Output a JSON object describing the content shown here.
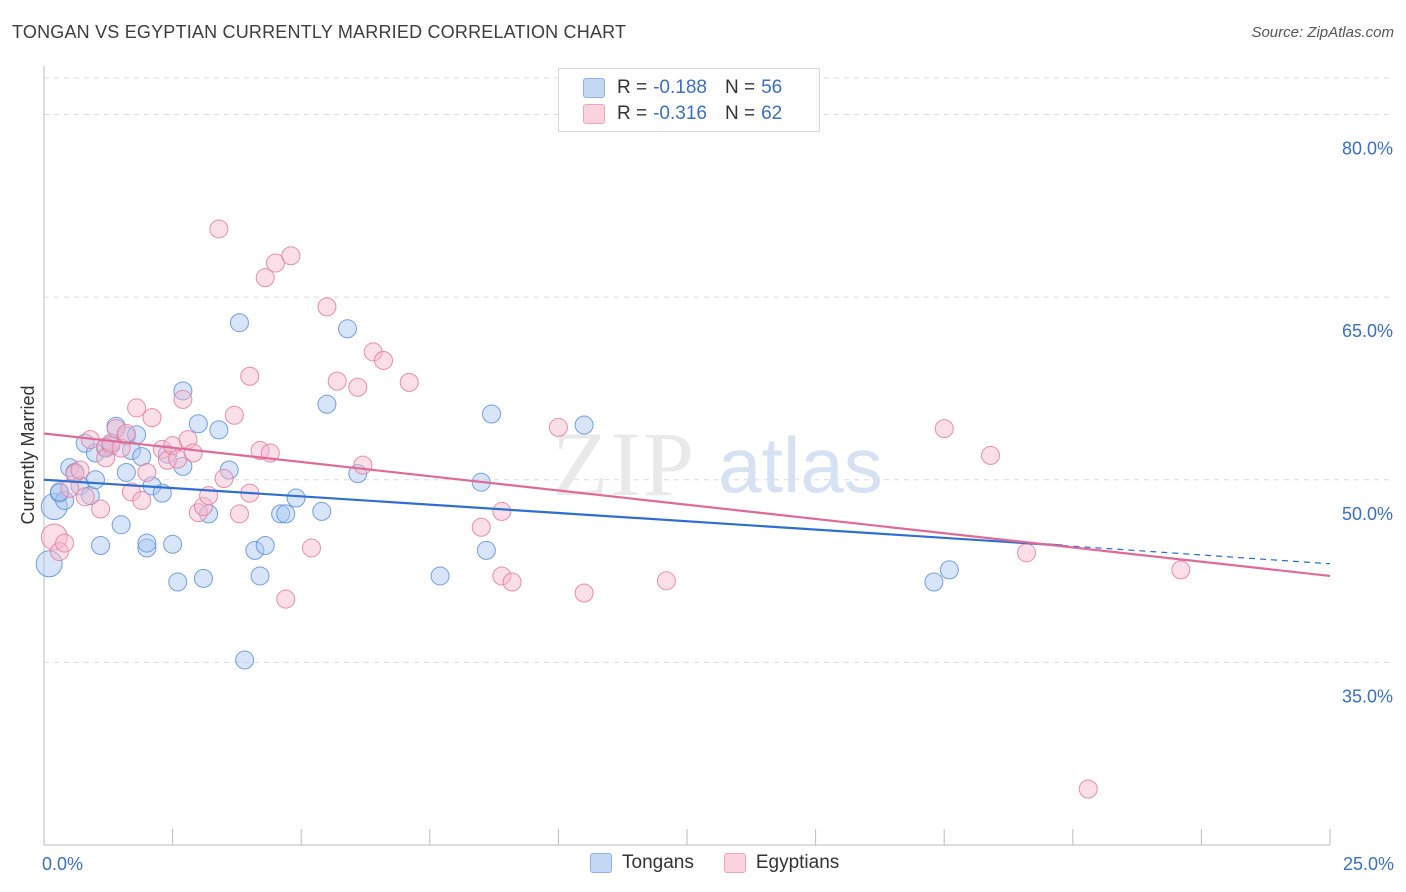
{
  "title": "TONGAN VS EGYPTIAN CURRENTLY MARRIED CORRELATION CHART",
  "source": "Source: ZipAtlas.com",
  "watermark": {
    "zip": "ZIP",
    "atlas": "atlas"
  },
  "legend": {
    "r_label": "R =",
    "n_label": "N =",
    "rows": [
      {
        "name": "Tongans",
        "r": "-0.188",
        "n": "56",
        "color": "#a9c6f0"
      },
      {
        "name": "Egyptians",
        "r": "-0.316",
        "n": "62",
        "color": "#f6b9cc"
      }
    ]
  },
  "bottom_legend": [
    "Tongans",
    "Egyptians"
  ],
  "chart_data": {
    "type": "scatter",
    "title": "TONGAN VS EGYPTIAN CURRENTLY MARRIED CORRELATION CHART",
    "xlabel": "",
    "ylabel": "Currently Married",
    "xlim": [
      0,
      25
    ],
    "ylim": [
      20,
      83
    ],
    "x_tick_labels": [
      "0.0%",
      "25.0%"
    ],
    "y_ticks": [
      35,
      50,
      65,
      80
    ],
    "y_tick_labels": [
      "35.0%",
      "50.0%",
      "65.0%",
      "80.0%"
    ],
    "grid": true,
    "series": [
      {
        "name": "Tongans",
        "color": "#5b8fdc",
        "fill": "#a9c6f0",
        "trend": {
          "x0": 0,
          "y0": 50.0,
          "x1": 19.8,
          "y1": 44.6,
          "dash_to_x": 25,
          "dash_to_y": 43.1,
          "color": "#2f6fcf"
        },
        "points": [
          [
            0.1,
            43.1
          ],
          [
            0.2,
            47.8
          ],
          [
            0.3,
            48.9
          ],
          [
            0.4,
            48.3
          ],
          [
            0.5,
            51.0
          ],
          [
            0.6,
            50.6
          ],
          [
            0.7,
            49.5
          ],
          [
            0.8,
            53.0
          ],
          [
            0.9,
            48.7
          ],
          [
            1.0,
            50.0
          ],
          [
            1.0,
            52.2
          ],
          [
            1.1,
            44.6
          ],
          [
            1.2,
            52.6
          ],
          [
            1.3,
            53.0
          ],
          [
            1.4,
            54.4
          ],
          [
            1.5,
            46.3
          ],
          [
            1.6,
            50.6
          ],
          [
            1.6,
            53.6
          ],
          [
            1.7,
            52.4
          ],
          [
            1.8,
            53.7
          ],
          [
            1.9,
            51.9
          ],
          [
            2.0,
            44.4
          ],
          [
            2.0,
            44.8
          ],
          [
            2.1,
            49.5
          ],
          [
            2.3,
            48.9
          ],
          [
            2.4,
            52.1
          ],
          [
            2.5,
            44.7
          ],
          [
            2.6,
            41.6
          ],
          [
            2.7,
            57.3
          ],
          [
            2.7,
            51.1
          ],
          [
            3.0,
            54.6
          ],
          [
            3.1,
            41.9
          ],
          [
            3.2,
            47.2
          ],
          [
            3.4,
            54.1
          ],
          [
            3.6,
            50.8
          ],
          [
            3.8,
            62.9
          ],
          [
            3.9,
            35.2
          ],
          [
            4.1,
            44.2
          ],
          [
            4.2,
            42.1
          ],
          [
            4.3,
            44.6
          ],
          [
            4.6,
            47.2
          ],
          [
            4.7,
            47.2
          ],
          [
            4.9,
            48.5
          ],
          [
            5.4,
            47.4
          ],
          [
            5.5,
            56.2
          ],
          [
            5.9,
            62.4
          ],
          [
            6.1,
            50.5
          ],
          [
            7.7,
            42.1
          ],
          [
            8.5,
            49.8
          ],
          [
            8.6,
            44.2
          ],
          [
            8.7,
            55.4
          ],
          [
            10.5,
            54.5
          ],
          [
            17.3,
            41.6
          ],
          [
            17.6,
            42.6
          ],
          [
            0.3,
            49.0
          ],
          [
            1.3,
            52.8
          ]
        ]
      },
      {
        "name": "Egyptians",
        "color": "#e37aa0",
        "fill": "#f6b9cc",
        "trend": {
          "x0": 0,
          "y0": 53.8,
          "x1": 25,
          "y1": 42.1,
          "color": "#e06a97"
        },
        "points": [
          [
            0.2,
            45.3
          ],
          [
            0.3,
            44.1
          ],
          [
            0.4,
            44.8
          ],
          [
            0.5,
            49.3
          ],
          [
            0.6,
            50.5
          ],
          [
            0.7,
            50.8
          ],
          [
            0.8,
            48.6
          ],
          [
            0.9,
            53.3
          ],
          [
            1.1,
            47.6
          ],
          [
            1.2,
            52.7
          ],
          [
            1.2,
            51.8
          ],
          [
            1.3,
            53.0
          ],
          [
            1.4,
            54.2
          ],
          [
            1.5,
            52.6
          ],
          [
            1.6,
            53.8
          ],
          [
            1.7,
            49.0
          ],
          [
            1.8,
            55.9
          ],
          [
            1.9,
            48.3
          ],
          [
            2.0,
            50.6
          ],
          [
            2.1,
            55.1
          ],
          [
            2.3,
            52.5
          ],
          [
            2.4,
            51.6
          ],
          [
            2.5,
            52.8
          ],
          [
            2.6,
            51.7
          ],
          [
            2.7,
            56.6
          ],
          [
            2.8,
            53.3
          ],
          [
            2.9,
            52.2
          ],
          [
            3.0,
            47.3
          ],
          [
            3.1,
            47.8
          ],
          [
            3.2,
            48.7
          ],
          [
            3.4,
            70.6
          ],
          [
            3.5,
            50.1
          ],
          [
            3.7,
            55.3
          ],
          [
            3.8,
            47.2
          ],
          [
            4.0,
            58.5
          ],
          [
            4.0,
            48.9
          ],
          [
            4.2,
            52.4
          ],
          [
            4.3,
            66.6
          ],
          [
            4.4,
            52.2
          ],
          [
            4.5,
            67.8
          ],
          [
            4.7,
            40.2
          ],
          [
            4.8,
            68.4
          ],
          [
            5.2,
            44.4
          ],
          [
            5.5,
            64.2
          ],
          [
            5.7,
            58.1
          ],
          [
            6.1,
            57.6
          ],
          [
            6.2,
            51.2
          ],
          [
            6.4,
            60.5
          ],
          [
            6.6,
            59.8
          ],
          [
            7.1,
            58.0
          ],
          [
            8.5,
            46.1
          ],
          [
            8.9,
            47.4
          ],
          [
            8.9,
            42.1
          ],
          [
            9.1,
            41.6
          ],
          [
            10.0,
            54.3
          ],
          [
            10.5,
            40.7
          ],
          [
            12.1,
            41.7
          ],
          [
            17.5,
            54.2
          ],
          [
            18.4,
            52.0
          ],
          [
            19.1,
            44.0
          ],
          [
            20.3,
            24.6
          ],
          [
            22.1,
            42.6
          ]
        ]
      }
    ]
  }
}
